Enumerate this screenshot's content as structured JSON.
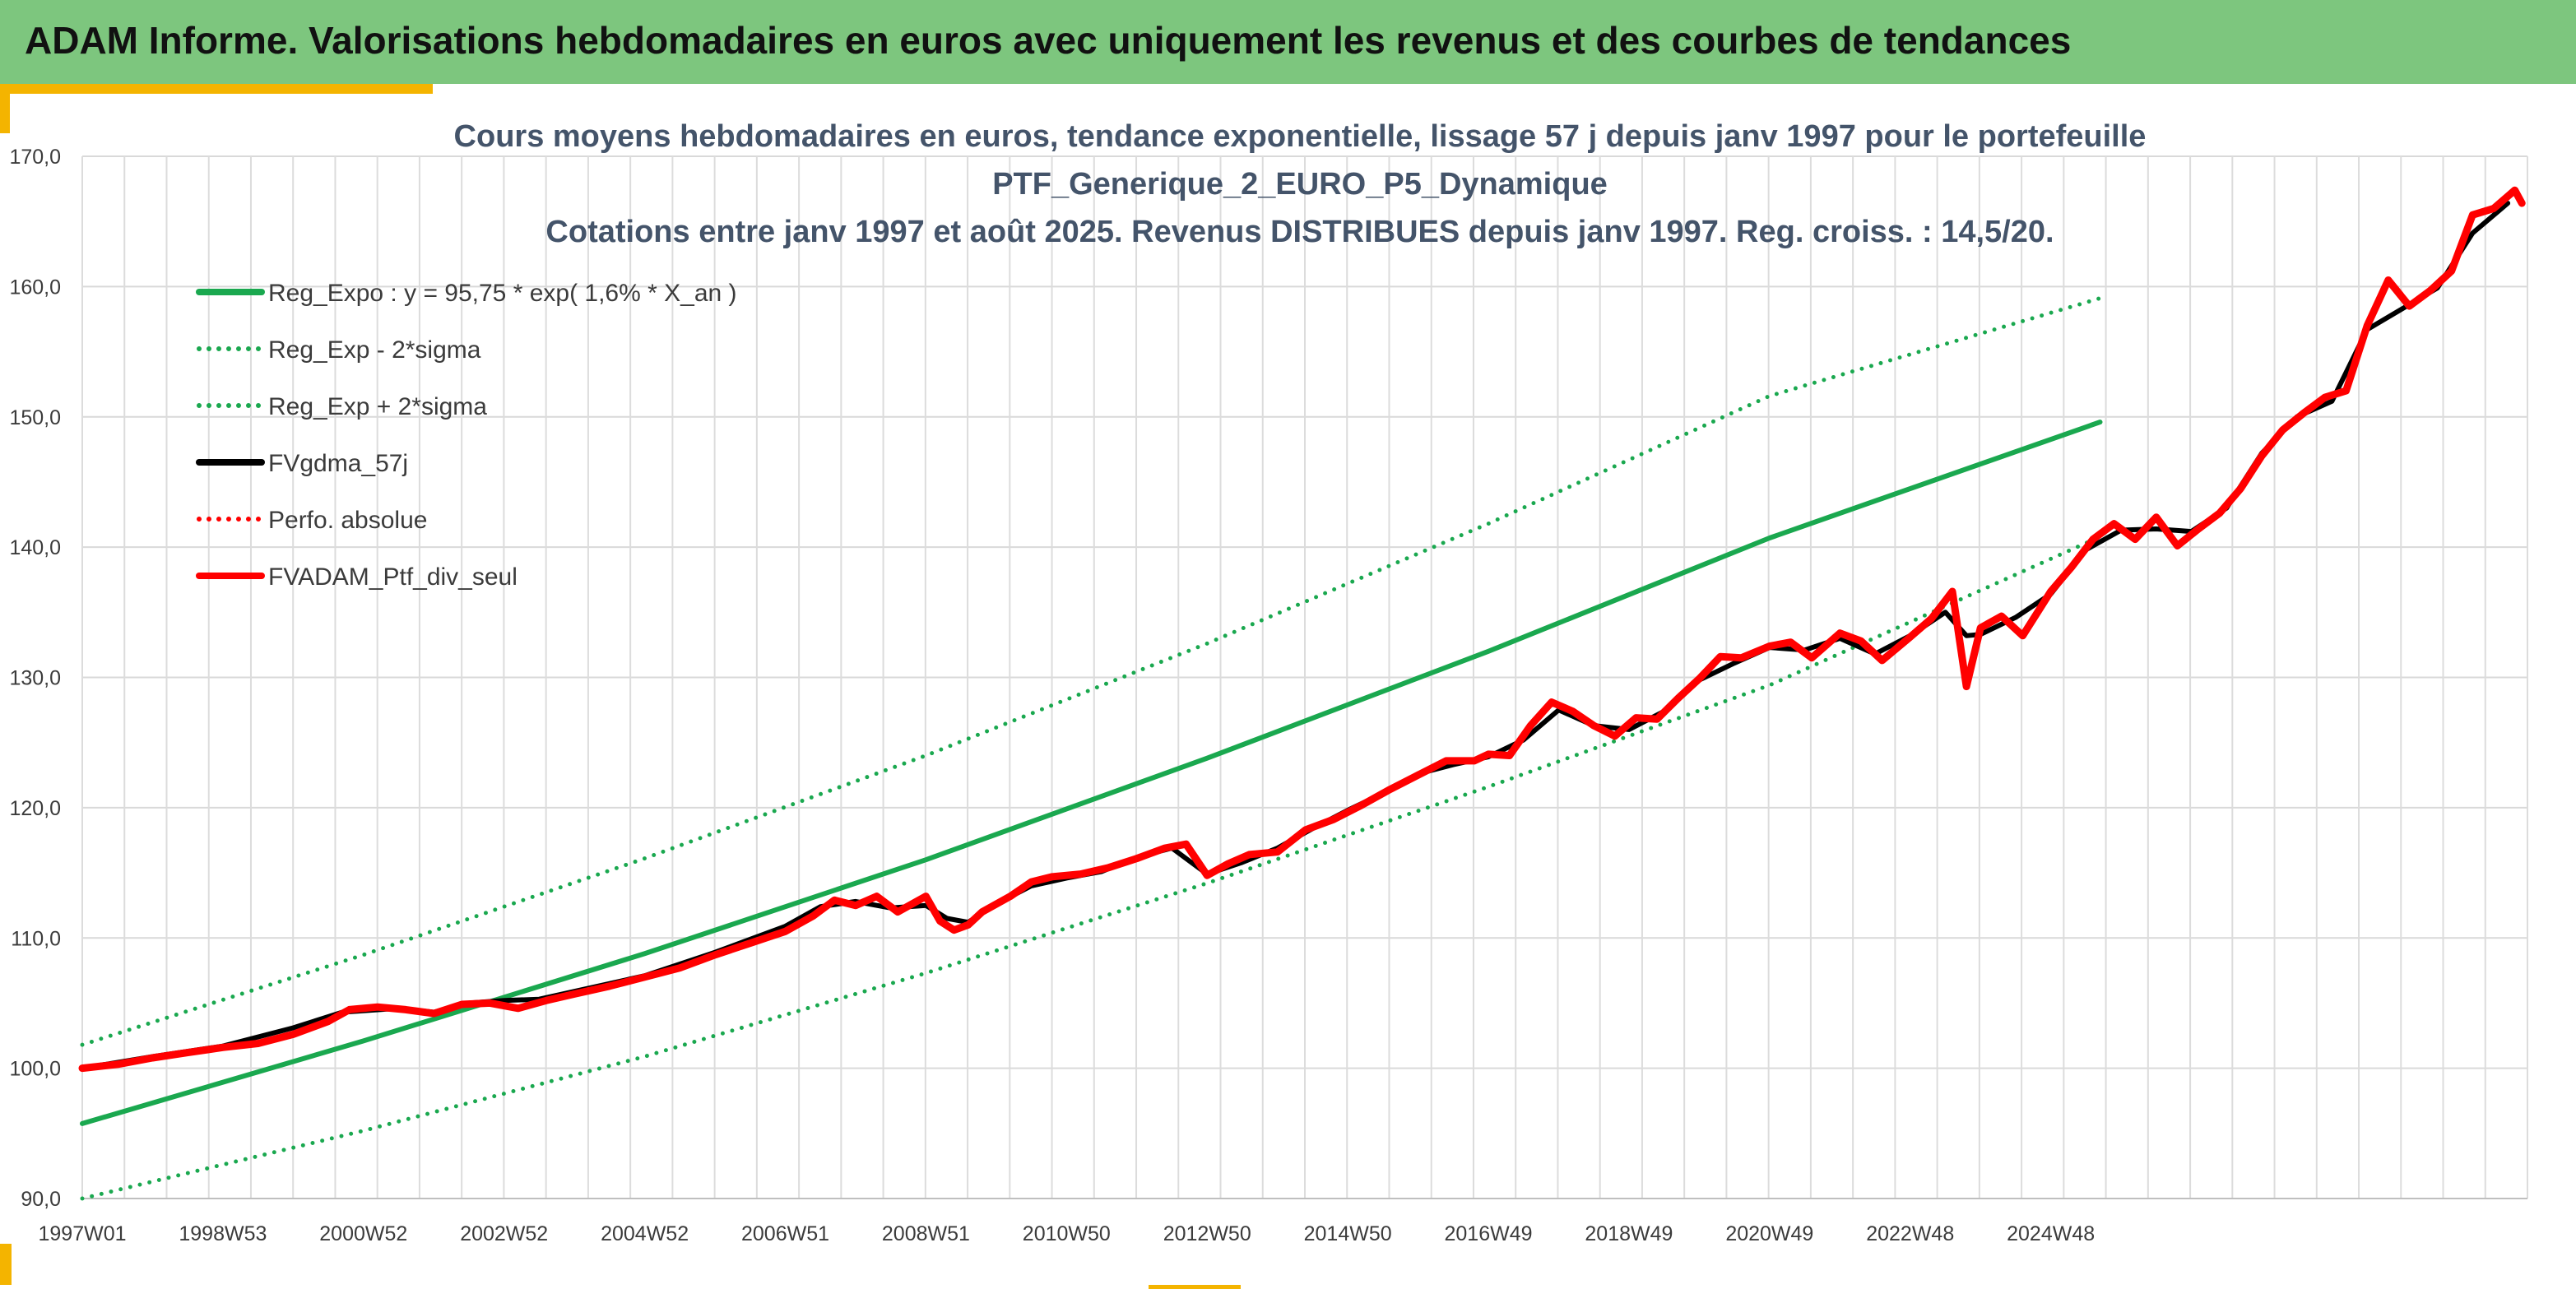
{
  "header": {
    "title": "ADAM Informe. Valorisations hebdomadaires en euros avec uniquement les revenus et des courbes de tendances"
  },
  "colors": {
    "header_bg": "#7dc67e",
    "accent": "#f4b400",
    "trend_green": "#1aa84f",
    "portfolio_red": "#ff0000",
    "smoothed_black": "#000000"
  },
  "chart_data": {
    "type": "line",
    "title_lines": [
      "Cours moyens hebdomadaires en euros, tendance exponentielle, lissage 57 j depuis janv 1997 pour le portefeuille",
      "PTF_Generique_2_EURO_P5_Dynamique",
      "Cotations entre janv 1997 et août 2025. Revenus DISTRIBUES depuis janv 1997. Reg. croiss. : 14,5/20."
    ],
    "x_range": [
      "1997W01",
      "2025W35"
    ],
    "x_tick_labels": [
      "1997W01",
      "1998W53",
      "2000W52",
      "2002W52",
      "2004W52",
      "2006W51",
      "2008W51",
      "2010W50",
      "2012W50",
      "2014W50",
      "2016W49",
      "2018W49",
      "2020W49",
      "2022W48",
      "2024W48"
    ],
    "x_tick_years": [
      1997.0,
      1999.0,
      2001.0,
      2003.0,
      2005.0,
      2007.0,
      2009.0,
      2011.0,
      2013.0,
      2015.0,
      2017.0,
      2019.0,
      2021.0,
      2023.0,
      2025.0
    ],
    "ylim": [
      90,
      170
    ],
    "y_ticks": [
      90,
      100,
      110,
      120,
      130,
      140,
      150,
      160,
      170
    ],
    "y_tick_labels": [
      "90,0",
      "100,0",
      "110,0",
      "120,0",
      "130,0",
      "140,0",
      "150,0",
      "160,0",
      "170,0"
    ],
    "grid": true,
    "legend_position": "top-left",
    "series": [
      {
        "name": "Reg_Expo : y = 95,75 * exp( 1,6% *  X_an )",
        "style": "solid",
        "color": "#1aa84f",
        "points": [
          [
            1997.0,
            95.75
          ],
          [
            2001.0,
            102.1
          ],
          [
            2005.0,
            108.8
          ],
          [
            2009.0,
            116.0
          ],
          [
            2013.0,
            123.8
          ],
          [
            2017.0,
            132.0
          ],
          [
            2021.0,
            140.7
          ],
          [
            2025.7,
            149.6
          ]
        ]
      },
      {
        "name": "Reg_Exp - 2*sigma",
        "style": "dotted",
        "color": "#1aa84f",
        "points": [
          [
            1997.0,
            90.0
          ],
          [
            2001.0,
            95.2
          ],
          [
            2005.0,
            100.9
          ],
          [
            2009.0,
            107.3
          ],
          [
            2013.0,
            114.2
          ],
          [
            2017.0,
            121.6
          ],
          [
            2021.0,
            129.4
          ],
          [
            2025.7,
            140.8
          ]
        ]
      },
      {
        "name": "Reg_Exp + 2*sigma",
        "style": "dotted",
        "color": "#1aa84f",
        "points": [
          [
            1997.0,
            101.8
          ],
          [
            2001.0,
            108.7
          ],
          [
            2005.0,
            116.1
          ],
          [
            2009.0,
            124.0
          ],
          [
            2013.0,
            132.6
          ],
          [
            2017.0,
            141.8
          ],
          [
            2021.0,
            151.6
          ],
          [
            2025.7,
            159.1
          ]
        ]
      },
      {
        "name": "FVgdma_57j",
        "style": "solid",
        "color": "#000000",
        "points": [
          [
            1997.0,
            100.0
          ],
          [
            1998.0,
            100.9
          ],
          [
            1999.0,
            101.7
          ],
          [
            2000.0,
            103.1
          ],
          [
            2000.7,
            104.3
          ],
          [
            2001.5,
            104.6
          ],
          [
            2002.0,
            104.3
          ],
          [
            2002.5,
            105.0
          ],
          [
            2003.0,
            105.2
          ],
          [
            2003.5,
            105.3
          ],
          [
            2004.0,
            105.9
          ],
          [
            2005.0,
            107.1
          ],
          [
            2006.0,
            108.9
          ],
          [
            2007.0,
            110.9
          ],
          [
            2007.5,
            112.4
          ],
          [
            2008.0,
            112.8
          ],
          [
            2008.5,
            112.3
          ],
          [
            2009.0,
            112.5
          ],
          [
            2009.3,
            111.5
          ],
          [
            2009.6,
            111.2
          ],
          [
            2010.0,
            112.6
          ],
          [
            2010.5,
            114.0
          ],
          [
            2011.0,
            114.6
          ],
          [
            2011.5,
            115.1
          ],
          [
            2012.0,
            116.2
          ],
          [
            2012.5,
            116.9
          ],
          [
            2013.0,
            114.9
          ],
          [
            2013.5,
            115.8
          ],
          [
            2014.0,
            116.9
          ],
          [
            2014.5,
            118.4
          ],
          [
            2015.0,
            119.8
          ],
          [
            2015.5,
            121.1
          ],
          [
            2016.0,
            122.6
          ],
          [
            2016.5,
            123.3
          ],
          [
            2017.0,
            123.9
          ],
          [
            2017.5,
            125.2
          ],
          [
            2018.0,
            127.5
          ],
          [
            2018.5,
            126.3
          ],
          [
            2019.0,
            126.0
          ],
          [
            2019.5,
            127.4
          ],
          [
            2020.0,
            129.8
          ],
          [
            2020.5,
            131.1
          ],
          [
            2021.0,
            132.3
          ],
          [
            2021.5,
            132.1
          ],
          [
            2022.0,
            133.0
          ],
          [
            2022.5,
            131.8
          ],
          [
            2023.0,
            133.2
          ],
          [
            2023.5,
            135.0
          ],
          [
            2023.8,
            133.2
          ],
          [
            2024.0,
            133.3
          ],
          [
            2024.5,
            134.6
          ],
          [
            2025.0,
            136.4
          ],
          [
            2025.5,
            139.8
          ],
          [
            2026.0,
            141.3
          ],
          [
            2026.5,
            141.4
          ],
          [
            2027.0,
            141.2
          ],
          [
            2027.5,
            143.0
          ],
          [
            2028.0,
            147.2
          ],
          [
            2028.5,
            150.0
          ],
          [
            2029.0,
            151.2
          ],
          [
            2029.5,
            156.7
          ],
          [
            2030.0,
            158.3
          ],
          [
            2030.5,
            159.9
          ],
          [
            2031.0,
            164.1
          ],
          [
            2031.5,
            166.4
          ]
        ]
      },
      {
        "name": "Perfo. absolue",
        "style": "dotted",
        "color": "#ff0000",
        "points": []
      },
      {
        "name": "FVADAM_Ptf_div_seul",
        "style": "solid",
        "color": "#ff0000",
        "points": [
          [
            1997.0,
            100.0
          ],
          [
            1997.5,
            100.3
          ],
          [
            1998.0,
            100.8
          ],
          [
            1998.5,
            101.2
          ],
          [
            1999.0,
            101.6
          ],
          [
            1999.5,
            101.9
          ],
          [
            2000.0,
            102.6
          ],
          [
            2000.5,
            103.6
          ],
          [
            2000.8,
            104.5
          ],
          [
            2001.2,
            104.7
          ],
          [
            2001.6,
            104.5
          ],
          [
            2002.0,
            104.2
          ],
          [
            2002.4,
            104.9
          ],
          [
            2002.8,
            105.0
          ],
          [
            2003.2,
            104.6
          ],
          [
            2003.6,
            105.2
          ],
          [
            2004.0,
            105.7
          ],
          [
            2004.5,
            106.3
          ],
          [
            2005.0,
            107.0
          ],
          [
            2005.5,
            107.7
          ],
          [
            2006.0,
            108.7
          ],
          [
            2006.5,
            109.6
          ],
          [
            2007.0,
            110.5
          ],
          [
            2007.4,
            111.7
          ],
          [
            2007.7,
            112.9
          ],
          [
            2008.0,
            112.5
          ],
          [
            2008.3,
            113.2
          ],
          [
            2008.6,
            112.0
          ],
          [
            2009.0,
            113.2
          ],
          [
            2009.2,
            111.3
          ],
          [
            2009.4,
            110.6
          ],
          [
            2009.6,
            111.0
          ],
          [
            2009.8,
            112.0
          ],
          [
            2010.2,
            113.2
          ],
          [
            2010.5,
            114.3
          ],
          [
            2010.8,
            114.7
          ],
          [
            2011.2,
            114.9
          ],
          [
            2011.6,
            115.4
          ],
          [
            2012.0,
            116.1
          ],
          [
            2012.4,
            116.9
          ],
          [
            2012.7,
            117.2
          ],
          [
            2013.0,
            114.8
          ],
          [
            2013.3,
            115.7
          ],
          [
            2013.6,
            116.4
          ],
          [
            2014.0,
            116.6
          ],
          [
            2014.4,
            118.3
          ],
          [
            2014.8,
            119.1
          ],
          [
            2015.2,
            120.2
          ],
          [
            2015.6,
            121.4
          ],
          [
            2016.0,
            122.5
          ],
          [
            2016.4,
            123.6
          ],
          [
            2016.8,
            123.6
          ],
          [
            2017.0,
            124.1
          ],
          [
            2017.3,
            124.0
          ],
          [
            2017.6,
            126.3
          ],
          [
            2017.9,
            128.1
          ],
          [
            2018.2,
            127.4
          ],
          [
            2018.5,
            126.3
          ],
          [
            2018.8,
            125.5
          ],
          [
            2019.1,
            126.9
          ],
          [
            2019.4,
            126.8
          ],
          [
            2019.7,
            128.4
          ],
          [
            2020.0,
            129.9
          ],
          [
            2020.3,
            131.6
          ],
          [
            2020.6,
            131.5
          ],
          [
            2021.0,
            132.4
          ],
          [
            2021.3,
            132.7
          ],
          [
            2021.6,
            131.5
          ],
          [
            2022.0,
            133.4
          ],
          [
            2022.3,
            132.8
          ],
          [
            2022.6,
            131.3
          ],
          [
            2023.0,
            133.1
          ],
          [
            2023.3,
            134.5
          ],
          [
            2023.6,
            136.6
          ],
          [
            2023.8,
            129.3
          ],
          [
            2024.0,
            133.8
          ],
          [
            2024.3,
            134.7
          ],
          [
            2024.6,
            133.2
          ],
          [
            2025.0,
            136.6
          ],
          [
            2025.3,
            138.5
          ],
          [
            2025.6,
            140.6
          ],
          [
            2025.9,
            141.8
          ],
          [
            2026.2,
            140.6
          ],
          [
            2026.5,
            142.3
          ],
          [
            2026.8,
            140.1
          ],
          [
            2027.1,
            141.4
          ],
          [
            2027.4,
            142.6
          ],
          [
            2027.7,
            144.5
          ],
          [
            2028.0,
            147.0
          ],
          [
            2028.3,
            149.0
          ],
          [
            2028.6,
            150.3
          ],
          [
            2028.9,
            151.5
          ],
          [
            2029.2,
            152.0
          ],
          [
            2029.5,
            157.0
          ],
          [
            2029.8,
            160.5
          ],
          [
            2030.1,
            158.5
          ],
          [
            2030.4,
            159.7
          ],
          [
            2030.7,
            161.2
          ],
          [
            2031.0,
            165.5
          ],
          [
            2031.3,
            166.0
          ],
          [
            2031.6,
            167.4
          ],
          [
            2031.7,
            166.4
          ]
        ]
      }
    ]
  }
}
